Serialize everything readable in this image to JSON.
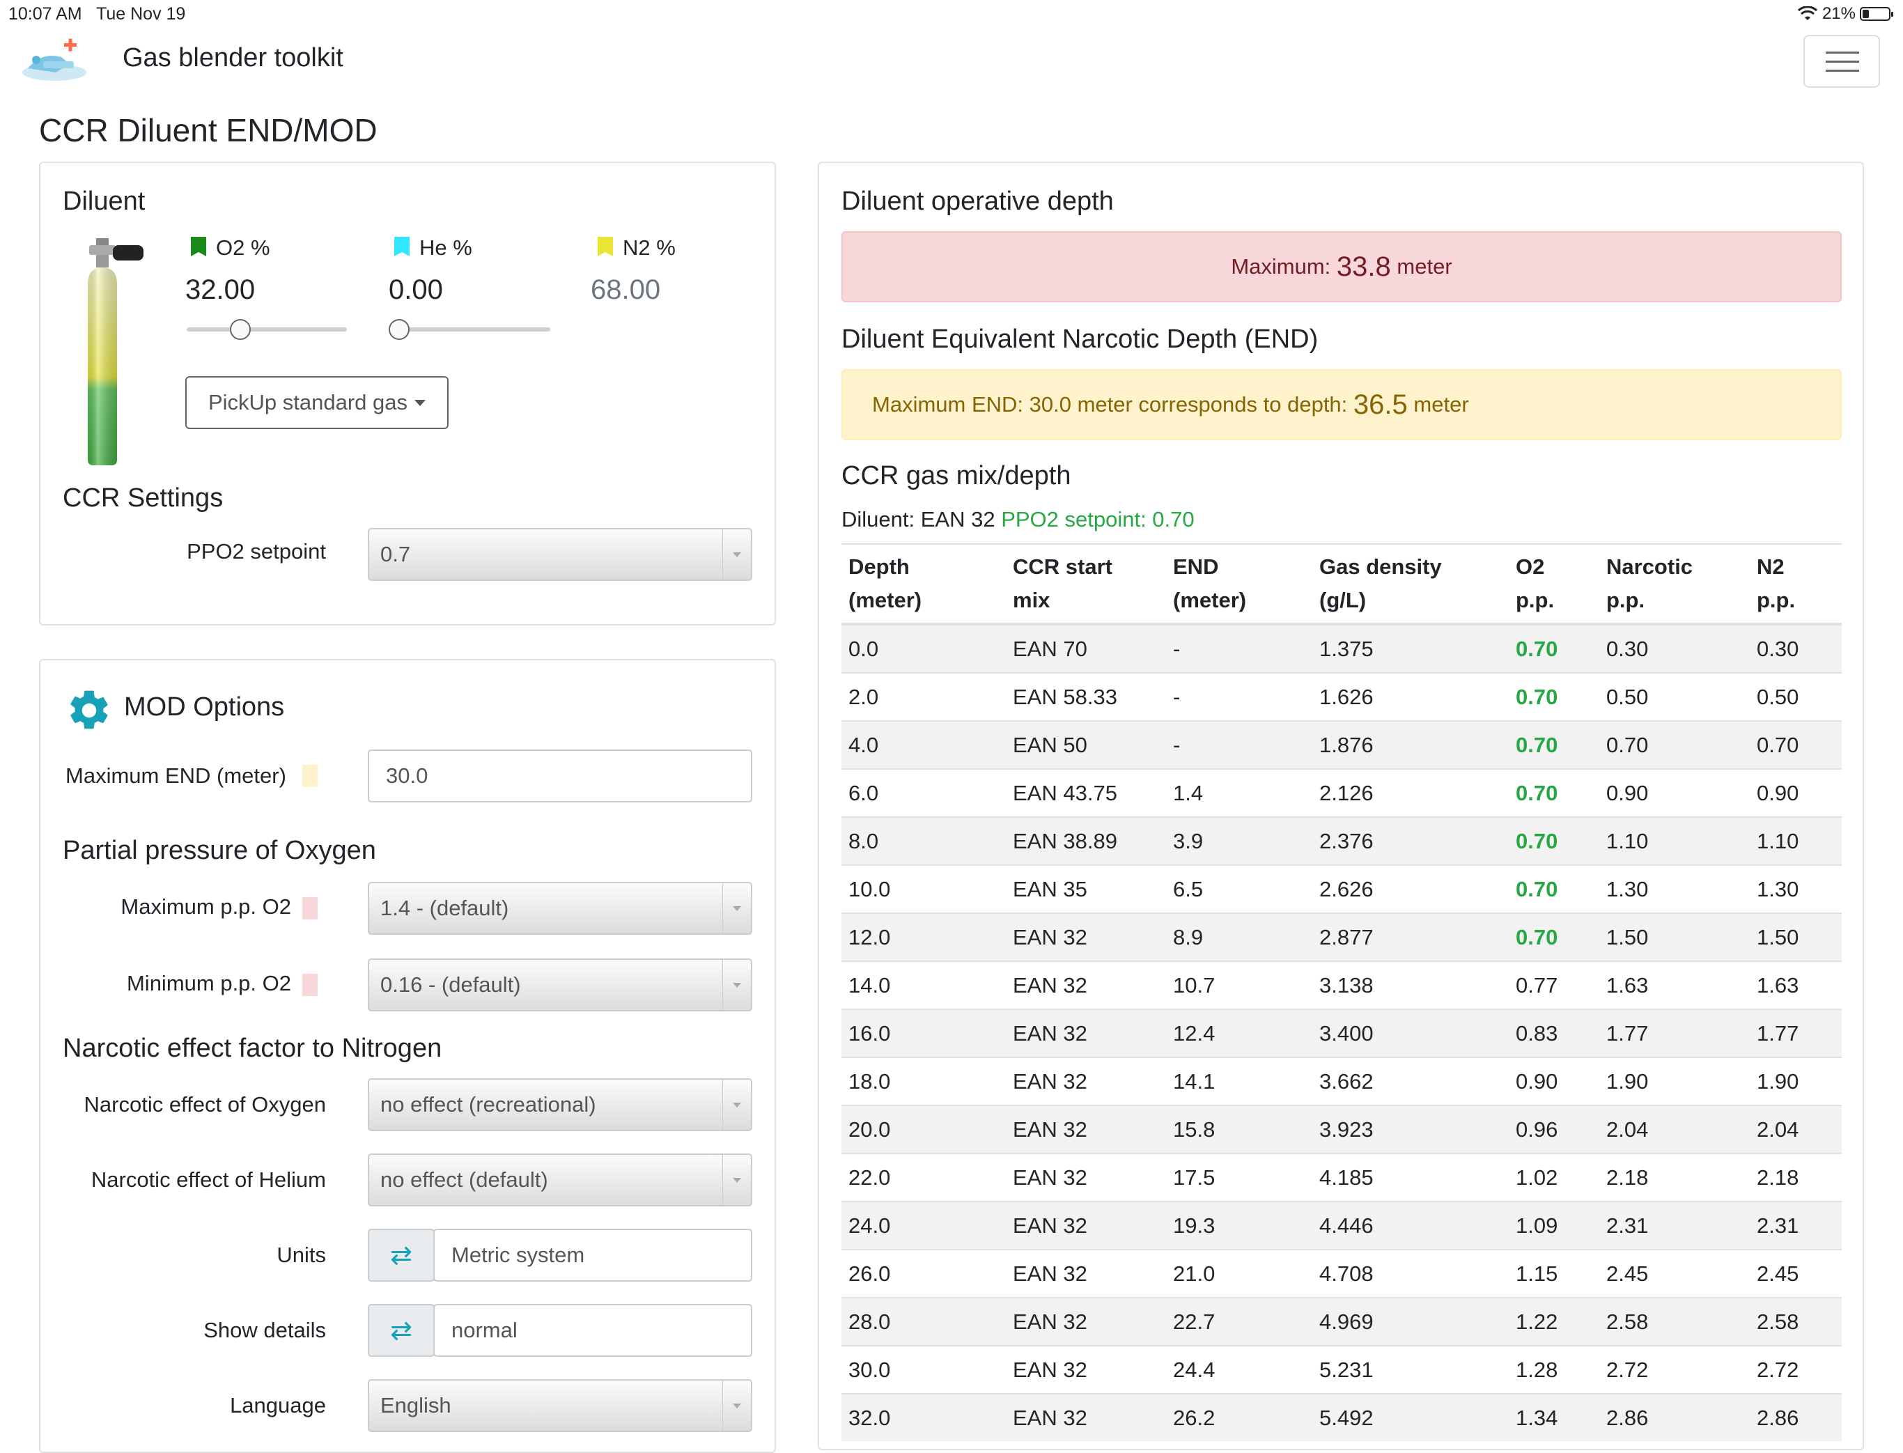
{
  "status_bar": {
    "time": "10:07 AM",
    "date": "Tue Nov 19",
    "battery": "21%"
  },
  "app": {
    "brand": "Gas blender toolkit",
    "page_title": "CCR Diluent END/MOD"
  },
  "diluent": {
    "heading": "Diluent",
    "o2": {
      "label": "O2 %",
      "value": "32.00",
      "color": "#1a8a1a"
    },
    "he": {
      "label": "He %",
      "value": "0.00",
      "color": "#33e6ff"
    },
    "n2": {
      "label": "N2 %",
      "value": "68.00",
      "color": "#e6e633"
    },
    "pickup_label": "PickUp standard gas"
  },
  "ccr_settings": {
    "heading": "CCR Settings",
    "ppo2_label": "PPO2 setpoint",
    "ppo2_value": "0.7"
  },
  "mod_options": {
    "heading": "MOD Options",
    "max_end_label": "Maximum END (meter)",
    "max_end_value": "30.0",
    "pp_heading": "Partial pressure of Oxygen",
    "max_ppo2_label": "Maximum p.p. O2",
    "max_ppo2_value": "1.4 - (default)",
    "min_ppo2_label": "Minimum p.p. O2",
    "min_ppo2_value": "0.16 - (default)",
    "narcotic_heading": "Narcotic effect factor to Nitrogen",
    "narc_o2_label": "Narcotic effect of Oxygen",
    "narc_o2_value": "no effect (recreational)",
    "narc_he_label": "Narcotic effect of Helium",
    "narc_he_value": "no effect (default)",
    "units_label": "Units",
    "units_value": "Metric system",
    "details_label": "Show details",
    "details_value": "normal",
    "language_label": "Language",
    "language_value": "English"
  },
  "operative_depth": {
    "heading": "Diluent operative depth",
    "max_prefix": "Maximum:",
    "max_value": "33.8",
    "max_unit": "meter"
  },
  "end": {
    "heading": "Diluent Equivalent Narcotic Depth (END)",
    "text": "Maximum END: 30.0 meter corresponds to depth:",
    "value": "36.5",
    "unit": "meter"
  },
  "gas_mix": {
    "heading": "CCR gas mix/depth",
    "diluent_text": "Diluent: EAN 32",
    "setpoint_text": "PPO2 setpoint: 0.70",
    "columns": [
      [
        "Depth",
        "(meter)"
      ],
      [
        "CCR start",
        "mix"
      ],
      [
        "END",
        "(meter)"
      ],
      [
        "Gas density",
        "(g/L)"
      ],
      [
        "O2",
        "p.p."
      ],
      [
        "Narcotic",
        "p.p."
      ],
      [
        "N2",
        "p.p."
      ]
    ],
    "rows": [
      [
        "0.0",
        "EAN 70",
        "-",
        "1.375",
        "0.70",
        "0.30",
        "0.30"
      ],
      [
        "2.0",
        "EAN 58.33",
        "-",
        "1.626",
        "0.70",
        "0.50",
        "0.50"
      ],
      [
        "4.0",
        "EAN 50",
        "-",
        "1.876",
        "0.70",
        "0.70",
        "0.70"
      ],
      [
        "6.0",
        "EAN 43.75",
        "1.4",
        "2.126",
        "0.70",
        "0.90",
        "0.90"
      ],
      [
        "8.0",
        "EAN 38.89",
        "3.9",
        "2.376",
        "0.70",
        "1.10",
        "1.10"
      ],
      [
        "10.0",
        "EAN 35",
        "6.5",
        "2.626",
        "0.70",
        "1.30",
        "1.30"
      ],
      [
        "12.0",
        "EAN 32",
        "8.9",
        "2.877",
        "0.70",
        "1.50",
        "1.50"
      ],
      [
        "14.0",
        "EAN 32",
        "10.7",
        "3.138",
        "0.77",
        "1.63",
        "1.63"
      ],
      [
        "16.0",
        "EAN 32",
        "12.4",
        "3.400",
        "0.83",
        "1.77",
        "1.77"
      ],
      [
        "18.0",
        "EAN 32",
        "14.1",
        "3.662",
        "0.90",
        "1.90",
        "1.90"
      ],
      [
        "20.0",
        "EAN 32",
        "15.8",
        "3.923",
        "0.96",
        "2.04",
        "2.04"
      ],
      [
        "22.0",
        "EAN 32",
        "17.5",
        "4.185",
        "1.02",
        "2.18",
        "2.18"
      ],
      [
        "24.0",
        "EAN 32",
        "19.3",
        "4.446",
        "1.09",
        "2.31",
        "2.31"
      ],
      [
        "26.0",
        "EAN 32",
        "21.0",
        "4.708",
        "1.15",
        "2.45",
        "2.45"
      ],
      [
        "28.0",
        "EAN 32",
        "22.7",
        "4.969",
        "1.22",
        "2.58",
        "2.58"
      ],
      [
        "30.0",
        "EAN 32",
        "24.4",
        "5.231",
        "1.28",
        "2.72",
        "2.72"
      ],
      [
        "32.0",
        "EAN 32",
        "26.2",
        "5.492",
        "1.34",
        "2.86",
        "2.86"
      ]
    ],
    "highlight_rows": 7,
    "highlight_color": "#28a745"
  },
  "colors": {
    "accent": "#17a2b8",
    "danger_bg": "#f8d7da",
    "warning_bg": "#fff3cd",
    "end_swatch": "#fff3cd",
    "pp_swatch": "#f8d7da"
  }
}
